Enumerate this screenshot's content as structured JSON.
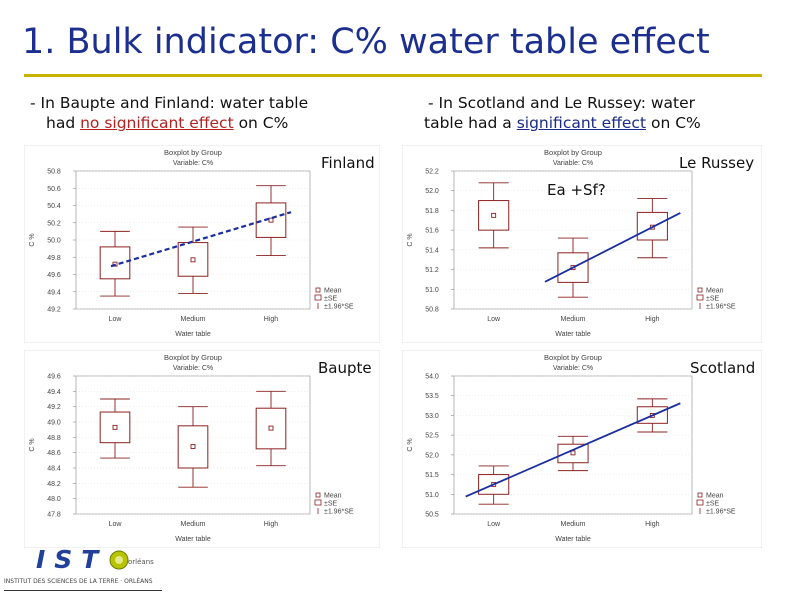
{
  "slide": {
    "title": "1. Bulk indicator: C% water table effect",
    "left_note": {
      "line1": "- In Baupte and Finland: water table",
      "line2_pre": "had ",
      "line2_em": "no significant effect",
      "line2_post": " on C%"
    },
    "right_note": {
      "line1": "- In Scotland and Le Russey: water",
      "line2_pre": "table had a ",
      "line2_em": "significant effect",
      "line2_post": " on C%"
    },
    "logo": {
      "text": "IST",
      "sub": "INSTITUT DES SCIENCES DE LA TERRE · ORLÉANS",
      "small": "orléans"
    }
  },
  "colors": {
    "title": "#1c2f8f",
    "rule": "#c8b400",
    "box": "#8b2020",
    "trend": "#1a2ea0"
  },
  "chart_data": [
    {
      "type": "box",
      "site": "Finland",
      "title": "Boxplot by Group",
      "subtitle": "Variable: C%",
      "xlabel": "Water table",
      "ylabel": "C %",
      "categories": [
        "Low",
        "Medium",
        "High"
      ],
      "yticks": [
        "50.8",
        "50.6",
        "50.4",
        "50.2",
        "50.0",
        "49.8",
        "49.6",
        "49.4",
        "49.2"
      ],
      "ylim": [
        49.2,
        50.8
      ],
      "series": [
        {
          "mean": 49.72,
          "se_low": 49.55,
          "se_high": 49.92,
          "ci_low": 49.35,
          "ci_high": 50.1
        },
        {
          "mean": 49.77,
          "se_low": 49.58,
          "se_high": 49.97,
          "ci_low": 49.38,
          "ci_high": 50.15
        },
        {
          "mean": 50.23,
          "se_low": 50.03,
          "se_high": 50.43,
          "ci_low": 49.82,
          "ci_high": 50.63
        }
      ],
      "legend": [
        "Mean",
        "±SE",
        "±1.96*SE"
      ],
      "trend": "dashed",
      "annotation": ""
    },
    {
      "type": "box",
      "site": "Le Russey",
      "title": "Boxplot by Group",
      "subtitle": "Variable: C%",
      "xlabel": "Water table",
      "ylabel": "C %",
      "categories": [
        "Low",
        "Medium",
        "High"
      ],
      "yticks": [
        "52.2",
        "52.0",
        "51.8",
        "51.6",
        "51.4",
        "51.2",
        "51.0",
        "50.8"
      ],
      "ylim": [
        50.8,
        52.2
      ],
      "series": [
        {
          "mean": 51.75,
          "se_low": 51.6,
          "se_high": 51.9,
          "ci_low": 51.42,
          "ci_high": 52.08
        },
        {
          "mean": 51.22,
          "se_low": 51.07,
          "se_high": 51.37,
          "ci_low": 50.92,
          "ci_high": 51.52
        },
        {
          "mean": 51.63,
          "se_low": 51.5,
          "se_high": 51.78,
          "ci_low": 51.32,
          "ci_high": 51.92
        }
      ],
      "legend": [
        "Mean",
        "±SE",
        "±1.96*SE"
      ],
      "trend": "solid",
      "annotation": "Ea +Sf?"
    },
    {
      "type": "box",
      "site": "Baupte",
      "title": "Boxplot by Group",
      "subtitle": "Variable: C%",
      "xlabel": "Water table",
      "ylabel": "C %",
      "categories": [
        "Low",
        "Medium",
        "High"
      ],
      "yticks": [
        "49.6",
        "49.4",
        "49.2",
        "49.0",
        "48.8",
        "48.6",
        "48.4",
        "48.2",
        "48.0",
        "47.8"
      ],
      "ylim": [
        47.8,
        49.6
      ],
      "series": [
        {
          "mean": 48.93,
          "se_low": 48.73,
          "se_high": 49.13,
          "ci_low": 48.53,
          "ci_high": 49.3
        },
        {
          "mean": 48.68,
          "se_low": 48.4,
          "se_high": 48.95,
          "ci_low": 48.15,
          "ci_high": 49.2
        },
        {
          "mean": 48.92,
          "se_low": 48.65,
          "se_high": 49.18,
          "ci_low": 48.43,
          "ci_high": 49.4
        }
      ],
      "legend": [
        "Mean",
        "±SE",
        "±1.96*SE"
      ],
      "trend": "",
      "annotation": ""
    },
    {
      "type": "box",
      "site": "Scotland",
      "title": "Boxplot by Group",
      "subtitle": "Variable: C%",
      "xlabel": "Water table",
      "ylabel": "C %",
      "categories": [
        "Low",
        "Medium",
        "High"
      ],
      "yticks": [
        "54.0",
        "53.5",
        "53.0",
        "52.5",
        "52.0",
        "51.5",
        "51.0",
        "50.5"
      ],
      "ylim": [
        50.5,
        54.0
      ],
      "series": [
        {
          "mean": 51.25,
          "se_low": 51.0,
          "se_high": 51.5,
          "ci_low": 50.75,
          "ci_high": 51.72
        },
        {
          "mean": 52.05,
          "se_low": 51.8,
          "se_high": 52.27,
          "ci_low": 51.6,
          "ci_high": 52.47
        },
        {
          "mean": 53.0,
          "se_low": 52.8,
          "se_high": 53.22,
          "ci_low": 52.58,
          "ci_high": 53.42
        }
      ],
      "legend": [
        "Mean",
        "±SE",
        "±1.96*SE"
      ],
      "trend": "solid",
      "annotation": ""
    }
  ]
}
